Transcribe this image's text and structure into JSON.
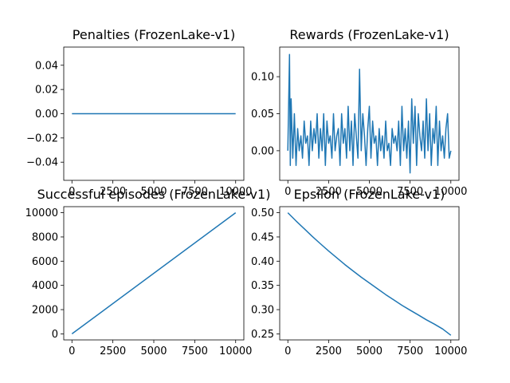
{
  "figure": {
    "background": "#ffffff",
    "line_color": "#1f77b4"
  },
  "chart_data": [
    {
      "type": "line",
      "title": "Penalties (FrozenLake-v1)",
      "xlabel": "",
      "ylabel": "",
      "xlim": [
        -500,
        10500
      ],
      "ylim": [
        -0.055,
        0.055
      ],
      "xticks": [
        0,
        2500,
        5000,
        7500,
        10000
      ],
      "xtick_labels": [
        "0",
        "2500",
        "5000",
        "7500",
        "10000"
      ],
      "yticks": [
        -0.04,
        -0.02,
        0.0,
        0.02,
        0.04
      ],
      "ytick_labels": [
        "−0.04",
        "−0.02",
        "0.00",
        "0.02",
        "0.04"
      ],
      "grid": false,
      "series": [
        {
          "x": [
            0,
            10000
          ],
          "y": [
            0,
            0
          ]
        }
      ]
    },
    {
      "type": "line",
      "title": "Rewards (FrozenLake-v1)",
      "xlabel": "",
      "ylabel": "",
      "xlim": [
        -500,
        10500
      ],
      "ylim": [
        -0.04,
        0.14
      ],
      "xticks": [
        0,
        2500,
        5000,
        7500,
        10000
      ],
      "xtick_labels": [
        "0",
        "2500",
        "5000",
        "7500",
        "10000"
      ],
      "yticks": [
        0.0,
        0.05,
        0.1
      ],
      "ytick_labels": [
        "0.00",
        "0.05",
        "0.10"
      ],
      "grid": false,
      "series": [
        {
          "x": [
            0,
            100,
            150,
            200,
            300,
            400,
            500,
            600,
            700,
            800,
            900,
            1000,
            1100,
            1200,
            1300,
            1400,
            1500,
            1600,
            1700,
            1800,
            1900,
            2000,
            2100,
            2200,
            2300,
            2400,
            2500,
            2600,
            2700,
            2800,
            2900,
            3000,
            3100,
            3200,
            3300,
            3400,
            3500,
            3600,
            3700,
            3800,
            3900,
            4000,
            4100,
            4200,
            4300,
            4400,
            4500,
            4600,
            4700,
            4800,
            4900,
            5000,
            5100,
            5200,
            5300,
            5400,
            5500,
            5600,
            5700,
            5800,
            5900,
            6000,
            6100,
            6200,
            6300,
            6400,
            6500,
            6600,
            6700,
            6800,
            6900,
            7000,
            7100,
            7200,
            7300,
            7400,
            7500,
            7600,
            7700,
            7800,
            7900,
            8000,
            8100,
            8200,
            8300,
            8400,
            8500,
            8600,
            8700,
            8800,
            8900,
            9000,
            9100,
            9200,
            9300,
            9400,
            9500,
            9600,
            9700,
            9800,
            9900,
            10000
          ],
          "y": [
            0.0,
            0.13,
            -0.02,
            0.07,
            -0.01,
            0.05,
            -0.02,
            0.03,
            0.0,
            0.02,
            -0.01,
            0.04,
            0.01,
            0.02,
            -0.02,
            0.04,
            0.0,
            0.03,
            0.01,
            0.05,
            -0.01,
            0.03,
            0.0,
            0.05,
            -0.02,
            0.04,
            0.01,
            0.02,
            -0.01,
            0.05,
            0.0,
            0.02,
            0.03,
            -0.02,
            0.05,
            0.01,
            0.03,
            -0.01,
            0.06,
            0.0,
            0.04,
            -0.02,
            0.05,
            0.02,
            -0.01,
            0.11,
            0.0,
            0.05,
            0.02,
            -0.02,
            0.03,
            0.06,
            -0.01,
            0.04,
            0.01,
            0.02,
            -0.02,
            0.03,
            0.0,
            0.02,
            -0.01,
            0.04,
            0.0,
            0.01,
            -0.02,
            0.03,
            0.01,
            0.02,
            0.0,
            0.04,
            -0.02,
            0.06,
            0.0,
            0.03,
            -0.01,
            0.04,
            -0.03,
            0.07,
            0.01,
            0.06,
            -0.02,
            0.05,
            0.02,
            0.0,
            0.04,
            -0.01,
            0.07,
            0.0,
            0.05,
            -0.02,
            0.03,
            0.01,
            0.06,
            -0.02,
            0.04,
            0.0,
            0.02,
            -0.01,
            0.03,
            0.05,
            -0.01,
            0.0
          ]
        }
      ]
    },
    {
      "type": "line",
      "title": "Successful episodes (FrozenLake-v1)",
      "xlabel": "",
      "ylabel": "",
      "xlim": [
        -500,
        10500
      ],
      "ylim": [
        -500,
        10500
      ],
      "xticks": [
        0,
        2500,
        5000,
        7500,
        10000
      ],
      "xtick_labels": [
        "0",
        "2500",
        "5000",
        "7500",
        "10000"
      ],
      "yticks": [
        0,
        2000,
        4000,
        6000,
        8000,
        10000
      ],
      "ytick_labels": [
        "0",
        "2000",
        "4000",
        "6000",
        "8000",
        "10000"
      ],
      "grid": false,
      "series": [
        {
          "x": [
            0,
            10000
          ],
          "y": [
            0,
            10000
          ]
        }
      ]
    },
    {
      "type": "line",
      "title": "Epsilon (FrozenLake-v1)",
      "xlabel": "",
      "ylabel": "",
      "xlim": [
        -500,
        10500
      ],
      "ylim": [
        0.2375,
        0.5125
      ],
      "xticks": [
        0,
        2500,
        5000,
        7500,
        10000
      ],
      "xtick_labels": [
        "0",
        "2500",
        "5000",
        "7500",
        "10000"
      ],
      "yticks": [
        0.25,
        0.3,
        0.35,
        0.4,
        0.45,
        0.5
      ],
      "ytick_labels": [
        "0.25",
        "0.30",
        "0.35",
        "0.40",
        "0.45",
        "0.50"
      ],
      "grid": false,
      "series": [
        {
          "x": [
            0,
            500,
            1000,
            1500,
            2000,
            2500,
            3000,
            3500,
            4000,
            4500,
            5000,
            5500,
            6000,
            6500,
            7000,
            7500,
            8000,
            8500,
            9000,
            9500,
            10000
          ],
          "y": [
            0.5,
            0.483,
            0.467,
            0.451,
            0.436,
            0.421,
            0.407,
            0.393,
            0.38,
            0.367,
            0.355,
            0.343,
            0.331,
            0.32,
            0.309,
            0.299,
            0.289,
            0.279,
            0.27,
            0.26,
            0.247
          ]
        }
      ]
    }
  ]
}
